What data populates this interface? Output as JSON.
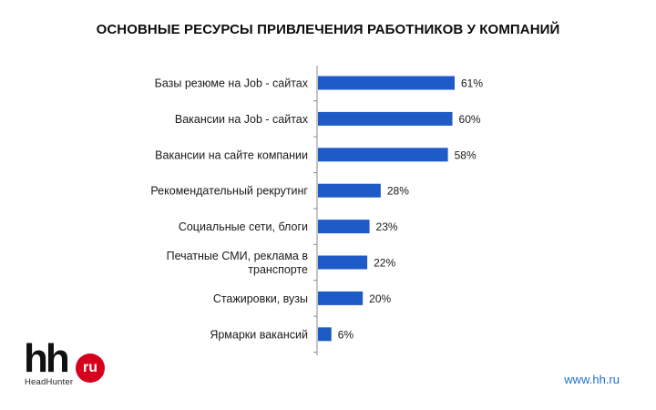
{
  "title": "ОСНОВНЫЕ РЕСУРСЫ ПРИВЛЕЧЕНИЯ РАБОТНИКОВ У КОМПАНИЙ",
  "logo": {
    "mark": "hh",
    "badge": "ru",
    "subtitle": "HeadHunter"
  },
  "website": "www.hh.ru",
  "chart_data": {
    "type": "bar",
    "orientation": "horizontal",
    "title": "ОСНОВНЫЕ РЕСУРСЫ ПРИВЛЕЧЕНИЯ РАБОТНИКОВ У КОМПАНИЙ",
    "bar_color": "#1f5bc6",
    "xlim": [
      0,
      100
    ],
    "grid": false,
    "categories": [
      [
        "Базы резюме на Job - сайтах"
      ],
      [
        "Вакансии на Job - сайтах"
      ],
      [
        "Вакансии на сайте компании"
      ],
      [
        "Рекомендательный рекрутинг"
      ],
      [
        "Социальные сети, блоги"
      ],
      [
        "Печатные СМИ, реклама в",
        "транспорте"
      ],
      [
        "Стажировки, вузы"
      ],
      [
        "Ярмарки вакансий"
      ]
    ],
    "values": [
      61,
      60,
      58,
      28,
      23,
      22,
      20,
      6
    ],
    "value_labels": [
      "61%",
      "60%",
      "58%",
      "28%",
      "23%",
      "22%",
      "20%",
      "6%"
    ]
  }
}
